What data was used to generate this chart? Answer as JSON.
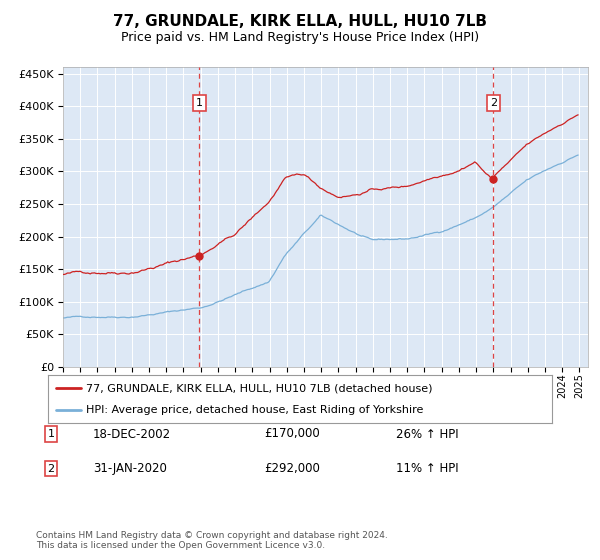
{
  "title": "77, GRUNDALE, KIRK ELLA, HULL, HU10 7LB",
  "subtitle": "Price paid vs. HM Land Registry's House Price Index (HPI)",
  "red_label": "77, GRUNDALE, KIRK ELLA, HULL, HU10 7LB (detached house)",
  "blue_label": "HPI: Average price, detached house, East Riding of Yorkshire",
  "sale1_date": "18-DEC-2002",
  "sale1_price": 170000,
  "sale1_hpi": "26% ↑ HPI",
  "sale2_date": "31-JAN-2020",
  "sale2_price": 292000,
  "sale2_hpi": "11% ↑ HPI",
  "footer": "Contains HM Land Registry data © Crown copyright and database right 2024.\nThis data is licensed under the Open Government Licence v3.0.",
  "bg_color": "#dde8f5",
  "ylim": [
    0,
    460000
  ],
  "yticks": [
    0,
    50000,
    100000,
    150000,
    200000,
    250000,
    300000,
    350000,
    400000,
    450000
  ],
  "x_start_year": 1995,
  "x_end_year": 2025,
  "red_color": "#cc2222",
  "blue_color": "#7ab0d8",
  "vline_color": "#dd4444"
}
